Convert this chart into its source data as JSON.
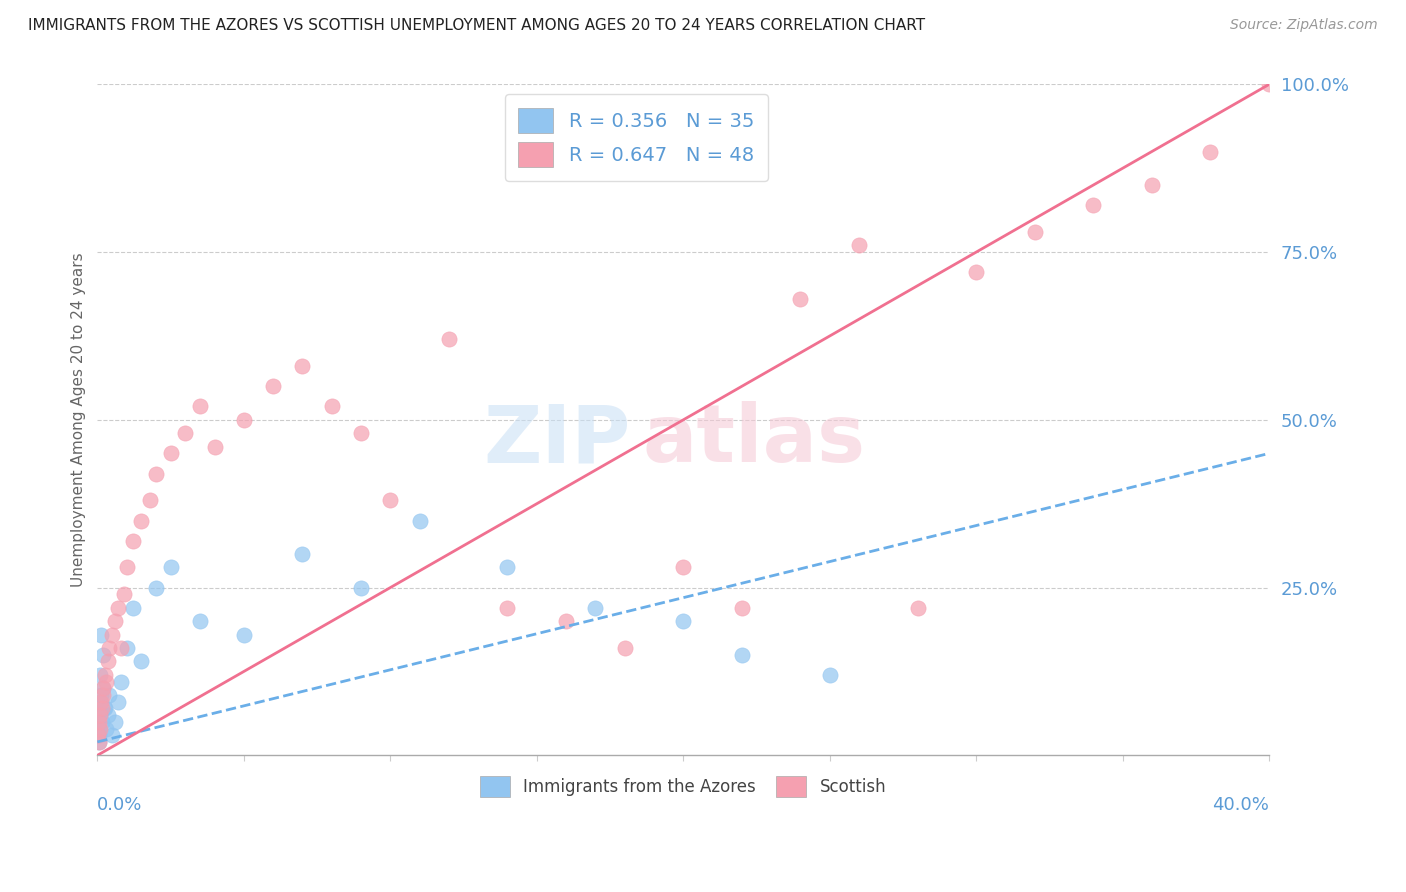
{
  "title": "IMMIGRANTS FROM THE AZORES VS SCOTTISH UNEMPLOYMENT AMONG AGES 20 TO 24 YEARS CORRELATION CHART",
  "source": "Source: ZipAtlas.com",
  "ylabel": "Unemployment Among Ages 20 to 24 years",
  "xlim": [
    0.0,
    40.0
  ],
  "ylim": [
    0.0,
    100.0
  ],
  "yticks": [
    0,
    25,
    50,
    75,
    100
  ],
  "ytick_labels": [
    "",
    "25.0%",
    "50.0%",
    "75.0%",
    "100.0%"
  ],
  "watermark_zip": "ZIP",
  "watermark_atlas": "atlas",
  "azores_color": "#92c5f0",
  "scottish_color": "#f5a0b0",
  "azores_line_color": "#6aaee8",
  "scottish_line_color": "#f07090",
  "azores_R": 0.356,
  "azores_N": 35,
  "scottish_R": 0.647,
  "scottish_N": 48,
  "blue_x": [
    0.05,
    0.08,
    0.1,
    0.12,
    0.15,
    0.18,
    0.2,
    0.25,
    0.3,
    0.35,
    0.4,
    0.5,
    0.6,
    0.7,
    0.8,
    1.0,
    1.2,
    1.5,
    2.0,
    2.5,
    3.5,
    5.0,
    7.0,
    9.0,
    11.0,
    14.0,
    17.0,
    20.0,
    22.0,
    25.0,
    0.05,
    0.07,
    0.09,
    0.13,
    0.22
  ],
  "blue_y": [
    3,
    8,
    12,
    18,
    5,
    10,
    15,
    7,
    4,
    6,
    9,
    3,
    5,
    8,
    11,
    16,
    22,
    14,
    25,
    28,
    20,
    18,
    30,
    25,
    35,
    28,
    22,
    20,
    15,
    12,
    2,
    4,
    6,
    9,
    7
  ],
  "pink_x": [
    0.03,
    0.05,
    0.07,
    0.08,
    0.1,
    0.12,
    0.15,
    0.18,
    0.2,
    0.25,
    0.3,
    0.35,
    0.4,
    0.5,
    0.6,
    0.7,
    0.8,
    0.9,
    1.0,
    1.2,
    1.5,
    1.8,
    2.0,
    2.5,
    3.0,
    3.5,
    4.0,
    5.0,
    6.0,
    7.0,
    8.0,
    9.0,
    10.0,
    12.0,
    14.0,
    16.0,
    18.0,
    20.0,
    22.0,
    24.0,
    26.0,
    28.0,
    30.0,
    32.0,
    34.0,
    36.0,
    38.0,
    40.0
  ],
  "pink_y": [
    3,
    2,
    5,
    4,
    6,
    8,
    7,
    10,
    9,
    12,
    11,
    14,
    16,
    18,
    20,
    22,
    16,
    24,
    28,
    32,
    35,
    38,
    42,
    45,
    48,
    52,
    46,
    50,
    55,
    58,
    52,
    48,
    38,
    62,
    22,
    20,
    16,
    28,
    22,
    68,
    76,
    22,
    72,
    78,
    82,
    85,
    90,
    100
  ],
  "blue_line_x0": 0.0,
  "blue_line_y0": 2.0,
  "blue_line_x1": 40.0,
  "blue_line_y1": 45.0,
  "pink_line_x0": 0.0,
  "pink_line_y0": 0.0,
  "pink_line_x1": 40.0,
  "pink_line_y1": 100.0
}
